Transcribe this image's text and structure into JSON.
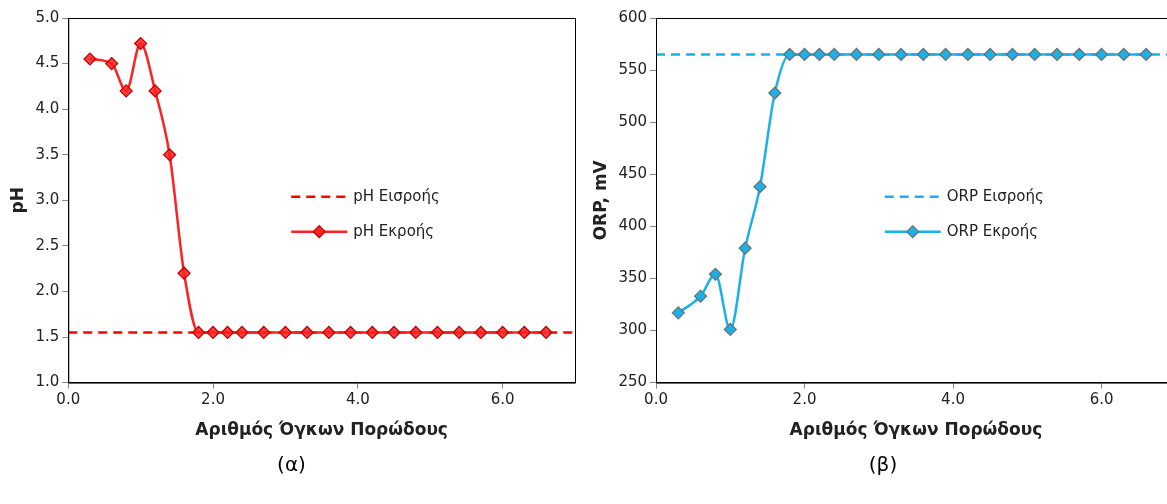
{
  "chart_data": [
    {
      "type": "line",
      "xlabel": "Αριθμός Όγκων Πορώδους",
      "ylabel": "pH",
      "x": [
        0.3,
        0.6,
        0.8,
        1.0,
        1.2,
        1.4,
        1.6,
        1.8,
        2.0,
        2.2,
        2.4,
        2.7,
        3.0,
        3.3,
        3.6,
        3.9,
        4.2,
        4.5,
        4.8,
        5.1,
        5.4,
        5.7,
        6.0,
        6.3,
        6.6
      ],
      "series": [
        {
          "name": "pH Εκροής",
          "color": "#ff2020",
          "values": [
            4.55,
            4.5,
            4.2,
            4.72,
            4.2,
            3.5,
            2.2,
            1.55,
            1.55,
            1.55,
            1.55,
            1.55,
            1.55,
            1.55,
            1.55,
            1.55,
            1.55,
            1.55,
            1.55,
            1.55,
            1.55,
            1.55,
            1.55,
            1.55,
            1.55
          ]
        }
      ],
      "ref_lines": [
        {
          "axis": "y",
          "value": 1.55,
          "label": "pH Εισροής",
          "color": "#ff0000",
          "line_style": "dashed"
        }
      ],
      "xlim": [
        0,
        7
      ],
      "xticks": [
        {
          "value": 0,
          "label": "0.0"
        },
        {
          "value": 2,
          "label": "2.0"
        },
        {
          "value": 4,
          "label": "4.0"
        },
        {
          "value": 6,
          "label": "6.0"
        }
      ],
      "ylim": [
        1,
        5
      ],
      "yticks": [
        {
          "value": 1,
          "label": "1.0"
        },
        1.5,
        {
          "value": 2,
          "label": "2.0"
        },
        2.5,
        {
          "value": 3,
          "label": "3.0"
        },
        3.5,
        {
          "value": 4,
          "label": "4.0"
        },
        4.5,
        {
          "value": 5,
          "label": "5.0"
        }
      ],
      "marker": "diamond",
      "line_style": "solid",
      "legend": "right",
      "grid": false,
      "annotations": [
        "(α)"
      ]
    },
    {
      "type": "line",
      "xlabel": "Αριθμός Όγκων Πορώδους",
      "ylabel": "ORP, mV",
      "x": [
        0.3,
        0.6,
        0.8,
        1.0,
        1.2,
        1.4,
        1.6,
        1.8,
        2.0,
        2.2,
        2.4,
        2.7,
        3.0,
        3.3,
        3.6,
        3.9,
        4.2,
        4.5,
        4.8,
        5.1,
        5.4,
        5.7,
        6.0,
        6.3,
        6.6
      ],
      "series": [
        {
          "name": "ORP Εκροής",
          "color": "#1ab0e8",
          "values": [
            317,
            333,
            354,
            301,
            379,
            438,
            528,
            565,
            565,
            565,
            565,
            565,
            565,
            565,
            565,
            565,
            565,
            565,
            565,
            565,
            565,
            565,
            565,
            565,
            565
          ]
        }
      ],
      "ref_lines": [
        {
          "axis": "y",
          "value": 565,
          "label": "ORP Εισροής",
          "color": "#1ab0e8",
          "line_style": "dashed"
        }
      ],
      "xlim": [
        0,
        7
      ],
      "xticks": [
        {
          "value": 0,
          "label": "0.0"
        },
        {
          "value": 2,
          "label": "2.0"
        },
        {
          "value": 4,
          "label": "4.0"
        },
        {
          "value": 6,
          "label": "6.0"
        }
      ],
      "ylim": [
        250,
        600
      ],
      "yticks": [
        250,
        300,
        350,
        400,
        450,
        500,
        550,
        600
      ],
      "marker": "diamond",
      "line_style": "solid",
      "legend": "right",
      "grid": false,
      "annotations": [
        "(β)"
      ]
    }
  ]
}
